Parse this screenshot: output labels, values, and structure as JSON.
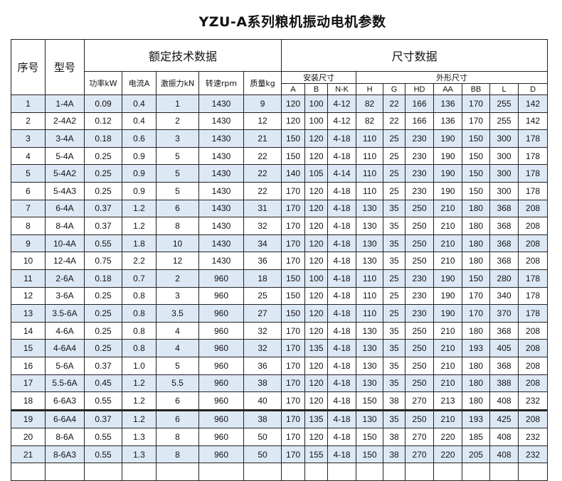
{
  "title": "YZU-A系列粮机振动电机参数",
  "headers": {
    "seq": "序号",
    "model": "型号",
    "rated": "额定技术数据",
    "dims": "尺寸数据",
    "install": "安装尺寸",
    "outline": "外形尺寸",
    "rated_cols": [
      "功率kW",
      "电流A",
      "激振力kN",
      "转速rpm",
      "质量kg"
    ],
    "install_cols": [
      "A",
      "B",
      "N-K"
    ],
    "outline_cols": [
      "H",
      "G",
      "HD",
      "AA",
      "BB",
      "L",
      "D"
    ]
  },
  "rows": [
    [
      "1",
      "1-4A",
      "0.09",
      "0.4",
      "1",
      "1430",
      "9",
      "120",
      "100",
      "4-12",
      "82",
      "22",
      "166",
      "136",
      "170",
      "255",
      "142"
    ],
    [
      "2",
      "2-4A2",
      "0.12",
      "0.4",
      "2",
      "1430",
      "12",
      "120",
      "100",
      "4-12",
      "82",
      "22",
      "166",
      "136",
      "170",
      "255",
      "142"
    ],
    [
      "3",
      "3-4A",
      "0.18",
      "0.6",
      "3",
      "1430",
      "21",
      "150",
      "120",
      "4-18",
      "110",
      "25",
      "230",
      "190",
      "150",
      "300",
      "178"
    ],
    [
      "4",
      "5-4A",
      "0.25",
      "0.9",
      "5",
      "1430",
      "22",
      "150",
      "120",
      "4-18",
      "110",
      "25",
      "230",
      "190",
      "150",
      "300",
      "178"
    ],
    [
      "5",
      "5-4A2",
      "0.25",
      "0.9",
      "5",
      "1430",
      "22",
      "140",
      "105",
      "4-14",
      "110",
      "25",
      "230",
      "190",
      "150",
      "300",
      "178"
    ],
    [
      "6",
      "5-4A3",
      "0.25",
      "0.9",
      "5",
      "1430",
      "22",
      "170",
      "120",
      "4-18",
      "110",
      "25",
      "230",
      "190",
      "150",
      "300",
      "178"
    ],
    [
      "7",
      "6-4A",
      "0.37",
      "1.2",
      "6",
      "1430",
      "31",
      "170",
      "120",
      "4-18",
      "130",
      "35",
      "250",
      "210",
      "180",
      "368",
      "208"
    ],
    [
      "8",
      "8-4A",
      "0.37",
      "1.2",
      "8",
      "1430",
      "32",
      "170",
      "120",
      "4-18",
      "130",
      "35",
      "250",
      "210",
      "180",
      "368",
      "208"
    ],
    [
      "9",
      "10-4A",
      "0.55",
      "1.8",
      "10",
      "1430",
      "34",
      "170",
      "120",
      "4-18",
      "130",
      "35",
      "250",
      "210",
      "180",
      "368",
      "208"
    ],
    [
      "10",
      "12-4A",
      "0.75",
      "2.2",
      "12",
      "1430",
      "36",
      "170",
      "120",
      "4-18",
      "130",
      "35",
      "250",
      "210",
      "180",
      "368",
      "208"
    ],
    [
      "11",
      "2-6A",
      "0.18",
      "0.7",
      "2",
      "960",
      "18",
      "150",
      "100",
      "4-18",
      "110",
      "25",
      "230",
      "190",
      "150",
      "280",
      "178"
    ],
    [
      "12",
      "3-6A",
      "0.25",
      "0.8",
      "3",
      "960",
      "25",
      "150",
      "120",
      "4-18",
      "110",
      "25",
      "230",
      "190",
      "170",
      "340",
      "178"
    ],
    [
      "13",
      "3.5-6A",
      "0.25",
      "0.8",
      "3.5",
      "960",
      "27",
      "150",
      "120",
      "4-18",
      "110",
      "25",
      "230",
      "190",
      "170",
      "370",
      "178"
    ],
    [
      "14",
      "4-6A",
      "0.25",
      "0.8",
      "4",
      "960",
      "32",
      "170",
      "120",
      "4-18",
      "130",
      "35",
      "250",
      "210",
      "180",
      "368",
      "208"
    ],
    [
      "15",
      "4-6A4",
      "0.25",
      "0.8",
      "4",
      "960",
      "32",
      "170",
      "135",
      "4-18",
      "130",
      "35",
      "250",
      "210",
      "193",
      "405",
      "208"
    ],
    [
      "16",
      "5-6A",
      "0.37",
      "1.0",
      "5",
      "960",
      "36",
      "170",
      "120",
      "4-18",
      "130",
      "35",
      "250",
      "210",
      "180",
      "368",
      "208"
    ],
    [
      "17",
      "5.5-6A",
      "0.45",
      "1.2",
      "5.5",
      "960",
      "38",
      "170",
      "120",
      "4-18",
      "130",
      "35",
      "250",
      "210",
      "180",
      "388",
      "208"
    ],
    [
      "18",
      "6-6A3",
      "0.55",
      "1.2",
      "6",
      "960",
      "40",
      "170",
      "120",
      "4-18",
      "150",
      "38",
      "270",
      "213",
      "180",
      "408",
      "232"
    ],
    [
      "19",
      "6-6A4",
      "0.37",
      "1.2",
      "6",
      "960",
      "38",
      "170",
      "135",
      "4-18",
      "130",
      "35",
      "250",
      "210",
      "193",
      "425",
      "208"
    ],
    [
      "20",
      "8-6A",
      "0.55",
      "1.3",
      "8",
      "960",
      "50",
      "170",
      "120",
      "4-18",
      "150",
      "38",
      "270",
      "220",
      "185",
      "408",
      "232"
    ],
    [
      "21",
      "8-6A3",
      "0.55",
      "1.3",
      "8",
      "960",
      "50",
      "170",
      "155",
      "4-18",
      "150",
      "38",
      "270",
      "220",
      "205",
      "408",
      "232"
    ]
  ],
  "colors": {
    "row_shade": "#dde8f5",
    "border": "#222222"
  }
}
